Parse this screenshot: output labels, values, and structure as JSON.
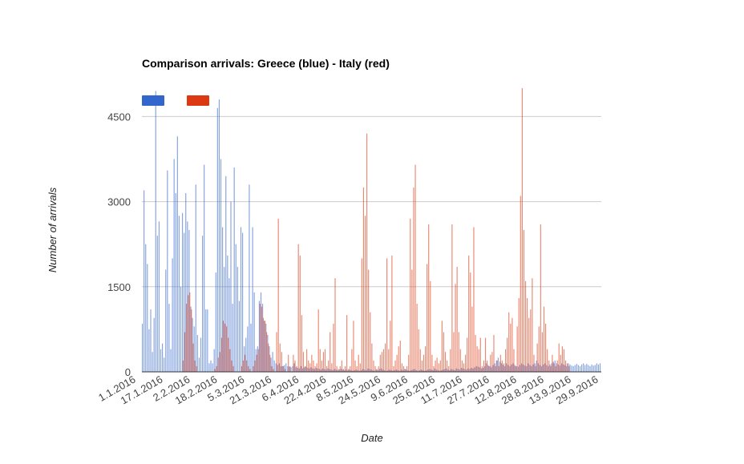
{
  "chart_data": {
    "type": "bar",
    "title": "Comparison arrivals: Greece (blue) - Italy (red)",
    "xlabel": "Date",
    "ylabel": "Number of arrivals",
    "ylim": [
      0,
      4500
    ],
    "yticks": [
      0,
      1500,
      3000,
      4500
    ],
    "grid": true,
    "legend": "top-left",
    "x_start": "1.1.2016",
    "x_end": "30.9.2016",
    "xtick_labels": [
      "1.1.2016",
      "17.1.2016",
      "2.2.2016",
      "18.2.2016",
      "5.3.2016",
      "21.3.2016",
      "6.4.2016",
      "22.4.2016",
      "8.5.2016",
      "24.5.2016",
      "9.6.2016",
      "25.6.2016",
      "11.7.2016",
      "27.7.2016",
      "12.8.2016",
      "28.8.2016",
      "13.9.2016",
      "29.9.2016"
    ],
    "series": [
      {
        "name": "",
        "color": "#3366cc",
        "values": [
          850,
          3200,
          2250,
          1900,
          750,
          1100,
          350,
          950,
          4950,
          2400,
          2650,
          400,
          500,
          250,
          1800,
          3550,
          1200,
          400,
          2000,
          3750,
          3150,
          4150,
          2750,
          1500,
          2800,
          2450,
          3150,
          2650,
          2500,
          1150,
          950,
          800,
          3300,
          650,
          250,
          600,
          2400,
          3650,
          1100,
          1100,
          150,
          200,
          150,
          400,
          1750,
          4650,
          4800,
          3750,
          2550,
          1850,
          3450,
          2050,
          1650,
          3000,
          1200,
          3600,
          2250,
          1850,
          1250,
          2550,
          2450,
          450,
          600,
          800,
          3300,
          850,
          2550,
          1400,
          400,
          450,
          1250,
          1400,
          1200,
          900,
          850,
          650,
          450,
          250,
          350,
          200,
          150,
          120,
          150,
          100,
          100,
          120,
          150,
          100,
          90,
          80,
          100,
          150,
          80,
          70,
          60,
          100,
          60,
          80,
          90,
          70,
          60,
          80,
          60,
          50,
          70,
          60,
          50,
          40,
          60,
          50,
          40,
          60,
          50,
          40,
          30,
          50,
          40,
          30,
          40,
          50,
          40,
          30,
          40,
          30,
          40,
          30,
          20,
          30,
          40,
          30,
          20,
          30,
          50,
          40,
          30,
          60,
          50,
          40,
          30,
          20,
          40,
          30,
          50,
          60,
          40,
          30,
          20,
          30,
          40,
          30,
          20,
          30,
          40,
          30,
          20,
          40,
          30,
          50,
          40,
          30,
          20,
          30,
          40,
          50,
          30,
          20,
          30,
          40,
          30,
          20,
          30,
          40,
          50,
          40,
          30,
          60,
          40,
          30,
          20,
          30,
          40,
          50,
          60,
          40,
          30,
          50,
          40,
          30,
          60,
          50,
          40,
          70,
          60,
          50,
          40,
          60,
          50,
          70,
          60,
          80,
          100,
          90,
          80,
          60,
          70,
          100,
          150,
          120,
          100,
          80,
          120,
          150,
          200,
          250,
          180,
          150,
          120,
          100,
          150,
          120,
          100,
          130,
          150,
          120,
          100,
          90,
          120,
          150,
          130,
          110,
          100,
          150,
          120,
          100,
          130,
          150,
          200,
          150,
          120,
          100,
          130,
          150,
          120,
          100,
          130,
          150,
          180,
          200,
          150,
          130,
          110,
          150,
          130,
          120,
          100,
          150,
          130,
          110,
          100,
          120,
          140,
          120,
          100,
          130,
          150,
          120,
          140,
          120,
          100,
          130,
          110,
          120,
          150,
          130,
          150
        ]
      },
      {
        "name": "",
        "color": "#dc3912",
        "values": [
          0,
          0,
          0,
          0,
          0,
          0,
          0,
          0,
          0,
          0,
          0,
          0,
          0,
          0,
          0,
          0,
          0,
          0,
          0,
          0,
          0,
          0,
          0,
          0,
          200,
          700,
          1200,
          1350,
          1400,
          1100,
          500,
          200,
          100,
          0,
          0,
          0,
          0,
          0,
          0,
          0,
          0,
          0,
          0,
          50,
          100,
          250,
          350,
          600,
          900,
          850,
          800,
          600,
          400,
          200,
          100,
          0,
          0,
          0,
          0,
          100,
          200,
          300,
          200,
          100,
          50,
          0,
          100,
          200,
          300,
          400,
          1200,
          1150,
          950,
          900,
          700,
          500,
          300,
          100,
          50,
          0,
          700,
          2700,
          500,
          350,
          100,
          50,
          0,
          300,
          100,
          0,
          300,
          200,
          100,
          2250,
          2050,
          1000,
          350,
          100,
          400,
          200,
          150,
          300,
          200,
          100,
          150,
          1100,
          400,
          200,
          350,
          400,
          100,
          200,
          700,
          150,
          850,
          1650,
          100,
          50,
          100,
          200,
          50,
          100,
          1000,
          50,
          100,
          400,
          900,
          200,
          100,
          300,
          150,
          2000,
          3250,
          2750,
          4200,
          1800,
          1050,
          500,
          200,
          100,
          50,
          100,
          300,
          350,
          400,
          500,
          2000,
          400,
          900,
          2050,
          100,
          200,
          300,
          450,
          550,
          150,
          100,
          50,
          100,
          300,
          2700,
          1800,
          3250,
          3650,
          1200,
          750,
          400,
          200,
          300,
          450,
          1900,
          2600,
          1600,
          300,
          100,
          200,
          250,
          150,
          200,
          900,
          700,
          350,
          200,
          100,
          400,
          2600,
          700,
          1550,
          1850,
          700,
          400,
          200,
          150,
          300,
          600,
          2050,
          1750,
          1150,
          2550,
          650,
          450,
          400,
          600,
          100,
          200,
          600,
          200,
          100,
          300,
          350,
          650,
          100,
          200,
          100,
          300,
          200,
          150,
          400,
          600,
          1050,
          850,
          950,
          400,
          100,
          800,
          1300,
          3100,
          5000,
          2500,
          1600,
          1300,
          950,
          1100,
          1650,
          300,
          100,
          500,
          800,
          2600,
          700,
          1150,
          850,
          400,
          200,
          100,
          300,
          150,
          100,
          200,
          500,
          300,
          450,
          400,
          200,
          150,
          100,
          0,
          0,
          0,
          0,
          0,
          0
        ]
      }
    ]
  }
}
